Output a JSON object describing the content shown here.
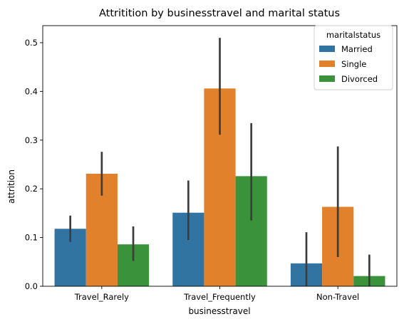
{
  "chart_data": {
    "type": "bar",
    "title": "Attritition by businesstravel and marital status",
    "xlabel": "businesstravel",
    "ylabel": "attrition",
    "categories": [
      "Travel_Rarely",
      "Travel_Frequently",
      "Non-Travel"
    ],
    "series": [
      {
        "name": "Married",
        "color": "#3274a1",
        "values": [
          0.118,
          0.151,
          0.047
        ],
        "ci_low": [
          0.091,
          0.095,
          0.0
        ],
        "ci_high": [
          0.145,
          0.217,
          0.111
        ]
      },
      {
        "name": "Single",
        "color": "#e1812c",
        "values": [
          0.231,
          0.406,
          0.163
        ],
        "ci_low": [
          0.186,
          0.311,
          0.06
        ],
        "ci_high": [
          0.276,
          0.51,
          0.287
        ]
      },
      {
        "name": "Divorced",
        "color": "#3a923a",
        "values": [
          0.086,
          0.226,
          0.021
        ],
        "ci_low": [
          0.052,
          0.135,
          0.0
        ],
        "ci_high": [
          0.123,
          0.335,
          0.065
        ]
      }
    ],
    "errorbar_color": "#3d3d3d",
    "ylim": [
      0,
      0.535
    ],
    "yticks": [
      0.0,
      0.1,
      0.2,
      0.3,
      0.4,
      0.5
    ],
    "ytick_labels": [
      "0.0",
      "0.1",
      "0.2",
      "0.3",
      "0.4",
      "0.5"
    ],
    "grid": false,
    "legend": {
      "title": "maritalstatus",
      "placement": "top-right"
    }
  }
}
